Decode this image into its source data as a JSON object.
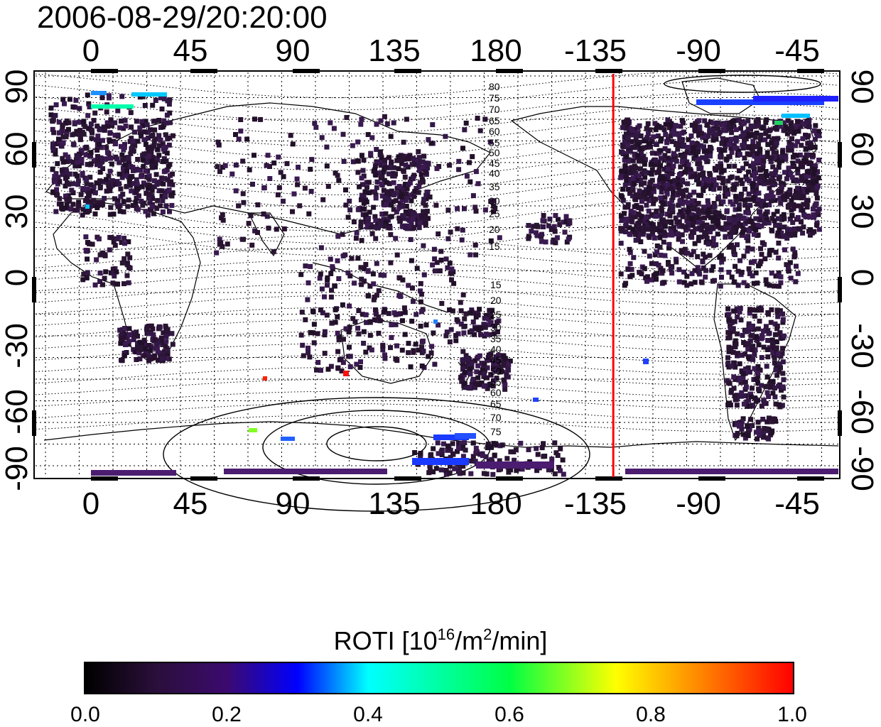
{
  "title": "2006-08-29/20:20:00",
  "x_top_ticks": [
    "0",
    "45",
    "90",
    "135",
    "180",
    "-135",
    "-90",
    "-45"
  ],
  "x_bottom_ticks": [
    "0",
    "45",
    "90",
    "135",
    "180",
    "-135",
    "-90",
    "-45"
  ],
  "y_left_ticks": [
    "90",
    "60",
    "30",
    "0",
    "-30",
    "-60",
    "-90"
  ],
  "y_right_ticks": [
    "90",
    "60",
    "30",
    "0",
    "-30",
    "-60",
    "-90"
  ],
  "contour_labels_north": [
    "80",
    "75",
    "70",
    "65",
    "60",
    "55",
    "50",
    "45",
    "40",
    "35",
    "30",
    "25",
    "20",
    "15"
  ],
  "contour_labels_south": [
    "15",
    "20",
    "25",
    "30",
    "35",
    "40",
    "45",
    "50",
    "55",
    "60",
    "65",
    "70",
    "75"
  ],
  "terminator_longitude": -128,
  "colorbar": {
    "title_main": "ROTI  [10",
    "title_sup1": "16",
    "title_mid": "/m",
    "title_sup2": "2",
    "title_end": "/min]",
    "range": [
      0.0,
      1.0
    ],
    "tick_labels": [
      "0.0",
      "0.2",
      "0.4",
      "0.6",
      "0.8",
      "1.0"
    ]
  },
  "colors": {
    "dark_cells": "#2a1533",
    "terminator": "#ff0000",
    "low": "#000000",
    "high": "#ff0000"
  }
}
